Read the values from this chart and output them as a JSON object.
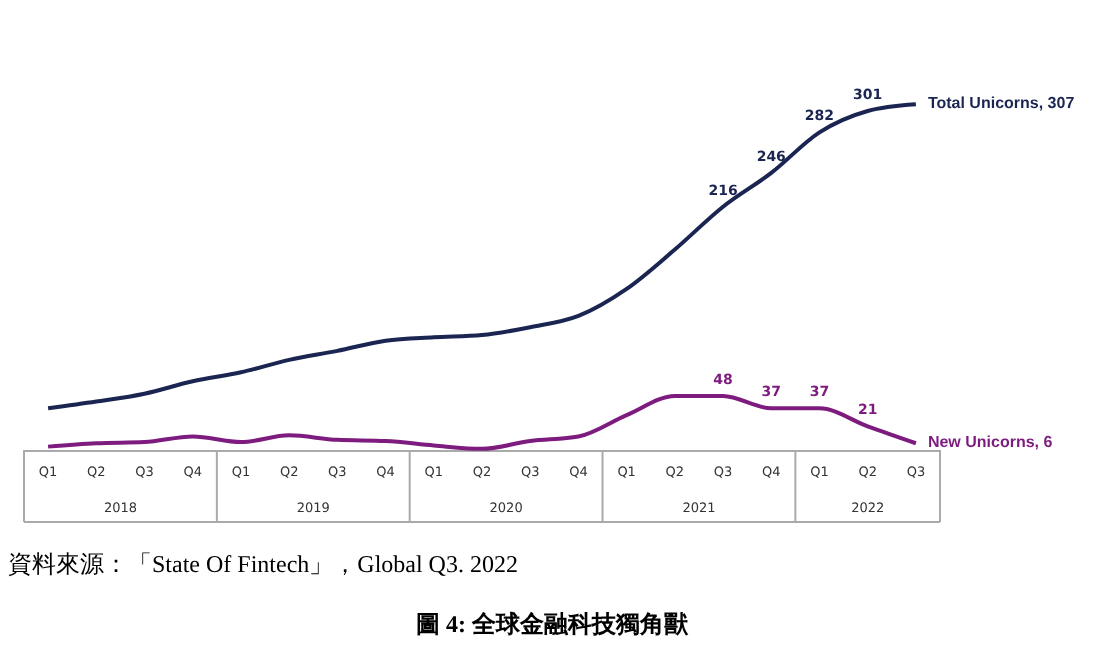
{
  "chart_data": {
    "type": "line",
    "title": "圖 4: 全球金融科技獨角獸",
    "legend": false,
    "categories": [
      "Q1",
      "Q2",
      "Q3",
      "Q4",
      "Q1",
      "Q2",
      "Q3",
      "Q4",
      "Q1",
      "Q2",
      "Q3",
      "Q4",
      "Q1",
      "Q2",
      "Q3",
      "Q4",
      "Q1",
      "Q2",
      "Q3"
    ],
    "series": [
      {
        "name": "Total Unicorns, 307",
        "color": "#1b2552",
        "values": [
          37,
          43,
          50,
          61,
          69,
          80,
          88,
          97,
          100,
          102,
          109,
          119,
          143,
          178,
          216,
          246,
          282,
          301,
          307
        ],
        "value_labels": [
          null,
          null,
          null,
          null,
          null,
          null,
          null,
          null,
          null,
          null,
          null,
          null,
          null,
          null,
          "216",
          "246",
          "282",
          "301",
          null
        ]
      },
      {
        "name": "New Unicorns, 6",
        "color": "#7d1b7e",
        "values": [
          3,
          6,
          7,
          12,
          7,
          13,
          9,
          8,
          4,
          1,
          8,
          12,
          31,
          48,
          48,
          37,
          37,
          21,
          6
        ],
        "value_labels": [
          null,
          null,
          null,
          null,
          null,
          null,
          null,
          null,
          null,
          null,
          null,
          null,
          null,
          null,
          "48",
          "37",
          "37",
          "21",
          null
        ]
      }
    ],
    "annotations": [
      "2018",
      "2019",
      "2020",
      "2021",
      "2022",
      "資料來源：「State Of Fintech」，Global Q3. 2022"
    ]
  }
}
